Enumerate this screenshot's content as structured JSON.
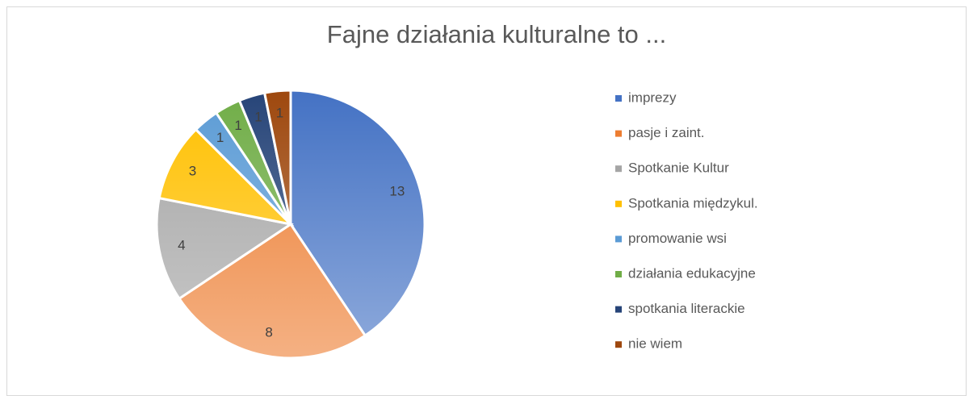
{
  "chart_data": {
    "type": "pie",
    "title": "Fajne działania kulturalne to ...",
    "categories": [
      "imprezy",
      "pasje i zaint.",
      "Spotkanie Kultur",
      "Spotkania międzykul.",
      "promowanie wsi",
      "działania edukacyjne",
      "spotkania literackie",
      "nie wiem"
    ],
    "values": [
      13,
      8,
      4,
      3,
      1,
      1,
      1,
      1
    ],
    "colors": [
      "#4472c4",
      "#ed7d31",
      "#a5a5a5",
      "#ffc000",
      "#5b9bd5",
      "#70ad47",
      "#264478",
      "#9e480e"
    ],
    "legend": "right"
  }
}
